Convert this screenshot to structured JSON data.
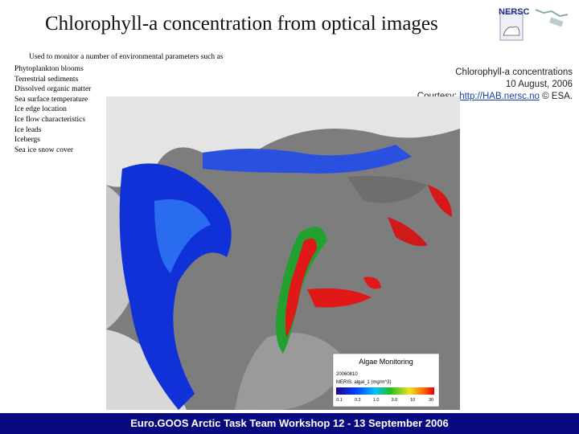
{
  "header": {
    "title": "Chlorophyll-a concentration from optical images",
    "logo": "NERSC"
  },
  "intro": "Used to monitor a number of environmental parameters such as",
  "list": [
    "Phytoplankton blooms",
    "Terrestrial sediments",
    "Dissolved organic matter",
    "Sea surface temperature",
    "Ice edge location",
    "Ice flow characteristics",
    "Ice leads",
    "Icebergs",
    "Sea ice snow cover"
  ],
  "caption": {
    "line1": "Chlorophyll-a concentrations",
    "line2": "10 August, 2006",
    "courtesy": "Courtesy:",
    "link": "http://HAB.nersc.no",
    "credit": "© ESA."
  },
  "inset": {
    "title": "Algae Monitoring",
    "date": "20060810",
    "product": "MERIS, algal_1 (mg/m^3)",
    "scale": [
      "0.1",
      "0.3",
      "1.0",
      "3.0",
      "10",
      "30"
    ]
  },
  "footer": "Euro.GOOS Arctic Task Team Workshop 12 - 13 September 2006"
}
